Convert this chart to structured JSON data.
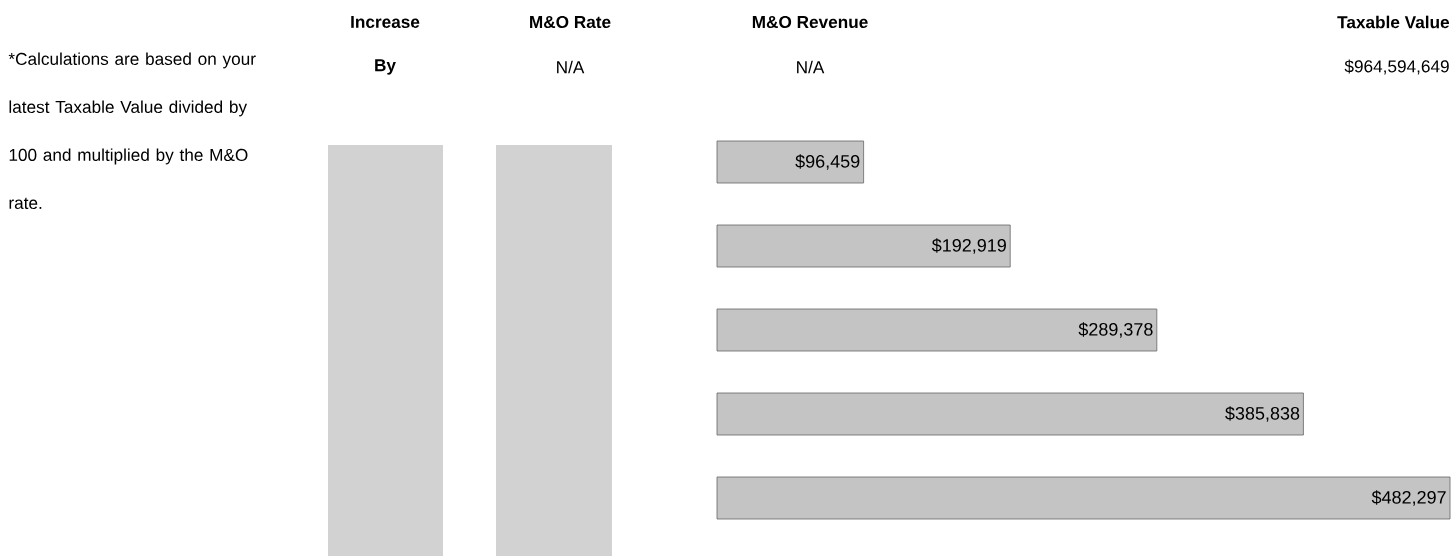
{
  "chart_data": {
    "type": "bar",
    "orientation": "horizontal",
    "categories": [
      null,
      null,
      null,
      null,
      null
    ],
    "values": [
      96459,
      192919,
      289378,
      385838,
      482297
    ],
    "value_labels": [
      "$96,459",
      "$192,919",
      "$289,378",
      "$385,838",
      "$482,297"
    ],
    "color": "#c4c4c4",
    "annotations": [
      "Increase",
      "By",
      "M&O Rate",
      "N/A",
      "M&O Revenue",
      "N/A",
      "Taxable Value",
      "$964,594,649",
      "*Calculations are based on your latest Taxable Value divided by 100 and multiplied by the M&O rate."
    ]
  }
}
